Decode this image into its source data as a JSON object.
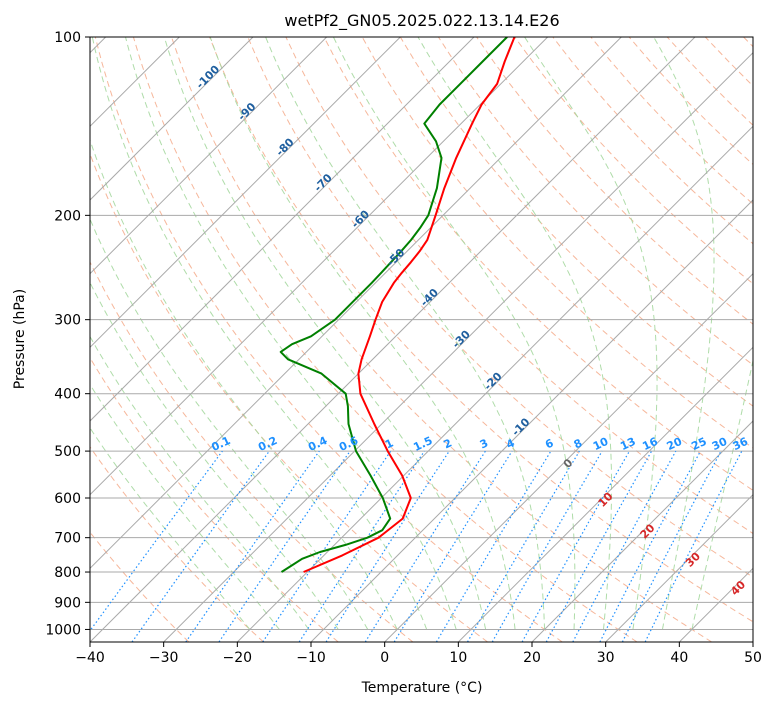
{
  "chart_data": {
    "type": "line",
    "title": "wetPf2_GN05.2025.022.13.14.E26",
    "xlabel": "Temperature (°C)",
    "ylabel": "Pressure (hPa)",
    "xlim": [
      -40,
      50
    ],
    "ylim": [
      1050,
      100
    ],
    "y_scale": "log",
    "x_ticks": [
      "−40",
      "−30",
      "−20",
      "−10",
      "0",
      "10",
      "20",
      "30",
      "40",
      "50"
    ],
    "x_tick_values": [
      -40,
      -30,
      -20,
      -10,
      0,
      10,
      20,
      30,
      40,
      50
    ],
    "y_ticks": [
      "100",
      "200",
      "300",
      "400",
      "500",
      "600",
      "700",
      "800",
      "900",
      "1000"
    ],
    "y_tick_values": [
      100,
      200,
      300,
      400,
      500,
      600,
      700,
      800,
      900,
      1000
    ],
    "grid": true,
    "series": [
      {
        "color": "#ff0000",
        "pressure": [
          800,
          750,
          700,
          650,
          600,
          550,
          500,
          450,
          400,
          370,
          350,
          320,
          300,
          280,
          260,
          250,
          240,
          230,
          220,
          200,
          180,
          160,
          140,
          130,
          120,
          110,
          100
        ],
        "temperature": [
          -20.5,
          -17.5,
          -15.0,
          -14.3,
          -16.0,
          -20.2,
          -25.5,
          -31.0,
          -37.0,
          -40.0,
          -41.5,
          -43.5,
          -45.0,
          -46.5,
          -47.5,
          -47.8,
          -48.0,
          -48.3,
          -48.8,
          -51.0,
          -53.5,
          -56.0,
          -58.5,
          -59.8,
          -60.5,
          -62.5,
          -64.5
        ]
      },
      {
        "color": "#008000",
        "pressure": [
          800,
          780,
          760,
          740,
          720,
          700,
          680,
          650,
          600,
          550,
          500,
          450,
          420,
          400,
          370,
          350,
          340,
          330,
          320,
          300,
          280,
          260,
          250,
          240,
          230,
          220,
          210,
          200,
          180,
          160,
          150,
          140,
          130,
          120,
          110,
          100
        ],
        "temperature": [
          -23.5,
          -23.0,
          -22.5,
          -21.0,
          -18.5,
          -16.5,
          -15.5,
          -16.0,
          -19.8,
          -24.5,
          -29.8,
          -34.5,
          -37.0,
          -39.0,
          -45.0,
          -51.5,
          -53.5,
          -53.0,
          -51.5,
          -50.5,
          -50.5,
          -50.5,
          -50.6,
          -50.7,
          -50.8,
          -51.0,
          -51.4,
          -52.0,
          -54.5,
          -58.0,
          -61.0,
          -65.0,
          -65.5,
          -65.5,
          -65.5,
          -65.5
        ]
      }
    ],
    "dry_adiabat_labels": [
      "-100",
      "-90",
      "-80",
      "-70",
      "-60",
      "-50",
      "-40",
      "-30",
      "-20",
      "-10"
    ],
    "dry_adiabat_label_values": [
      -100,
      -90,
      -80,
      -70,
      -60,
      -50,
      -40,
      -30,
      -20,
      -10
    ],
    "moist_adiabat_labels": [
      "0",
      "10",
      "20",
      "30",
      "40"
    ],
    "moist_adiabat_label_values": [
      0,
      10,
      20,
      30,
      40
    ],
    "mixing_ratio_labels": [
      "0.1",
      "0.2",
      "0.4",
      "0.6",
      "1",
      "1.5",
      "2",
      "3",
      "4",
      "6",
      "8",
      "10",
      "13",
      "16",
      "20",
      "25",
      "30",
      "36"
    ],
    "mixing_ratio_values": [
      0.1,
      0.2,
      0.4,
      0.6,
      1,
      1.5,
      2,
      3,
      4,
      6,
      8,
      10,
      13,
      16,
      20,
      25,
      30,
      36
    ],
    "colors": {
      "isotherm": "#aaaaaa",
      "isobar": "#aaaaaa",
      "dry_adiabat": "#f4a582",
      "moist_adiabat": "#a6d8a0",
      "mixing_ratio": "#1e90ff",
      "dry_adiabat_label": "#1f5f9f",
      "moist_adiabat_label": "#d62728",
      "temperature": "#ff0000",
      "dewpoint": "#008000"
    }
  }
}
